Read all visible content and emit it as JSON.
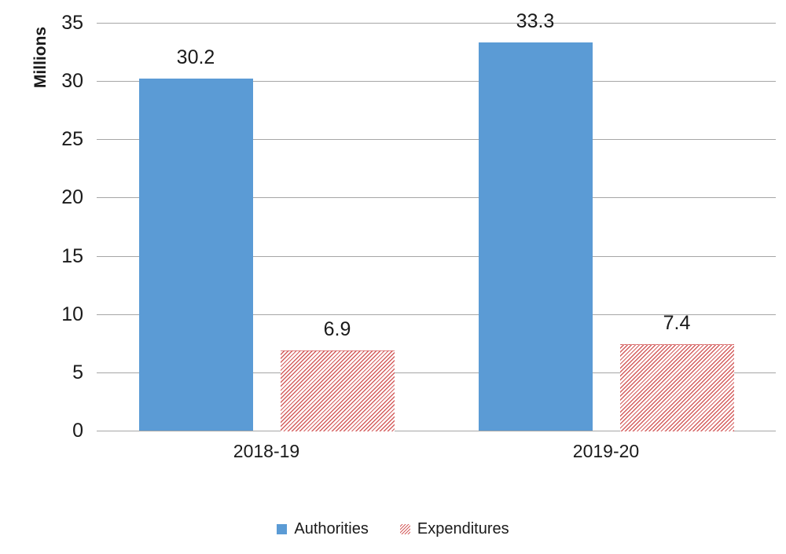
{
  "chart_data": {
    "type": "bar",
    "title": "",
    "xlabel": "",
    "ylabel": "Millions",
    "categories": [
      "2018-19",
      "2019-20"
    ],
    "series": [
      {
        "name": "Authorities",
        "values": [
          30.2,
          33.3
        ],
        "labels": [
          "30.2",
          "33.3"
        ],
        "color": "#5B9BD5",
        "fill": "solid"
      },
      {
        "name": "Expenditures",
        "values": [
          6.9,
          7.4
        ],
        "labels": [
          "6.9",
          "7.4"
        ],
        "color": "#D45E5E",
        "fill": "hatch"
      }
    ],
    "yticks": [
      0,
      5,
      10,
      15,
      20,
      25,
      30,
      35
    ],
    "ylim": [
      0,
      35
    ],
    "grid": true,
    "legend_position": "bottom",
    "gridline_color": "#A6A6A6",
    "text_color": "#1A1A1A"
  }
}
